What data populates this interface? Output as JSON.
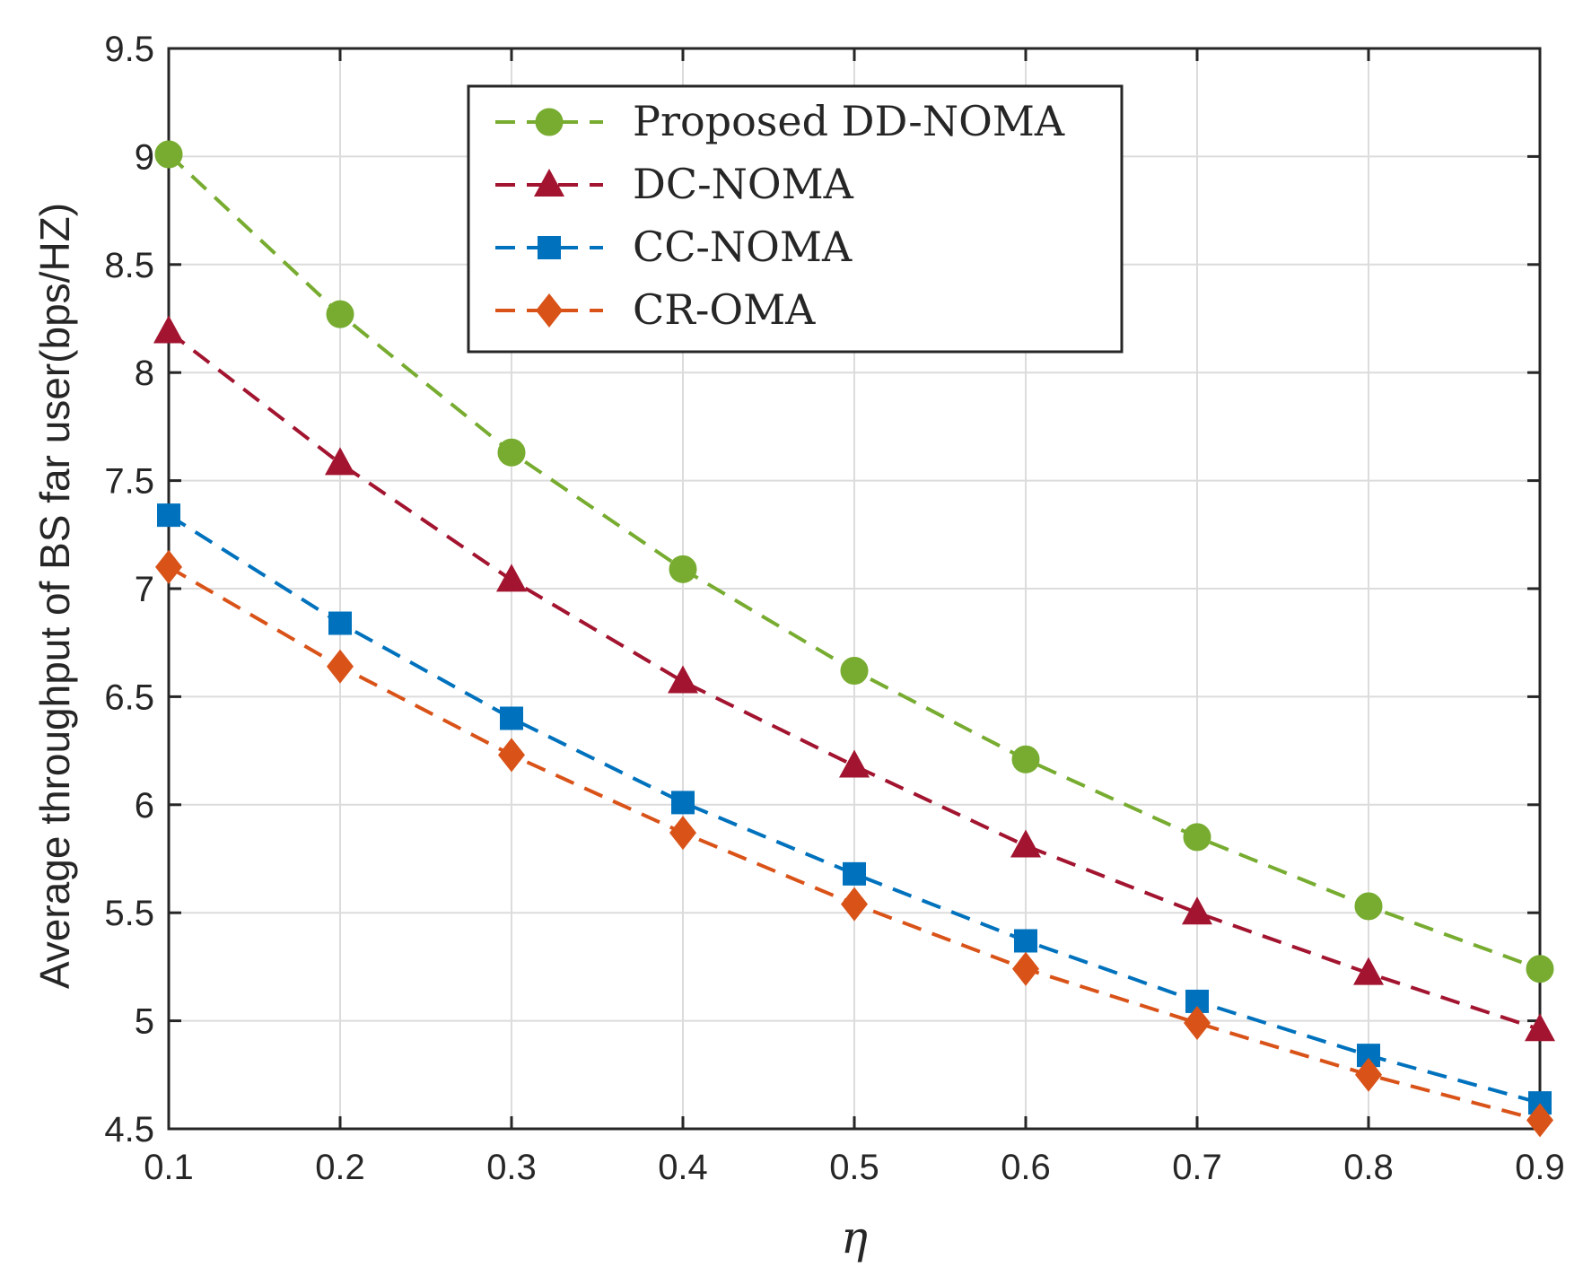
{
  "chart_data": {
    "type": "line",
    "title": "",
    "xlabel": "η",
    "ylabel": "Average throughput of BS far user(bps/HZ)",
    "xlim": [
      0.1,
      0.9
    ],
    "ylim": [
      4.5,
      9.5
    ],
    "grid": true,
    "legend_position": "top-center",
    "x": [
      0.1,
      0.2,
      0.3,
      0.4,
      0.5,
      0.6,
      0.7,
      0.8,
      0.9
    ],
    "x_ticks": [
      "0.1",
      "0.2",
      "0.3",
      "0.4",
      "0.5",
      "0.6",
      "0.7",
      "0.8",
      "0.9"
    ],
    "y_ticks": [
      "4.5",
      "5",
      "5.5",
      "6",
      "6.5",
      "7",
      "7.5",
      "8",
      "8.5",
      "9",
      "9.5"
    ],
    "series": [
      {
        "name": "Proposed DD-NOMA",
        "marker": "circle",
        "color": "#77AC30",
        "values": [
          9.01,
          8.27,
          7.63,
          7.09,
          6.62,
          6.21,
          5.85,
          5.53,
          5.24
        ]
      },
      {
        "name": "DC-NOMA",
        "marker": "triangle",
        "color": "#A2142F",
        "values": [
          8.19,
          7.58,
          7.04,
          6.57,
          6.18,
          5.81,
          5.5,
          5.22,
          4.96
        ]
      },
      {
        "name": "CC-NOMA",
        "marker": "square",
        "color": "#0072BD",
        "values": [
          7.34,
          6.84,
          6.4,
          6.01,
          5.68,
          5.37,
          5.09,
          4.84,
          4.62
        ]
      },
      {
        "name": "CR-OMA",
        "marker": "diamond",
        "color": "#D95319",
        "values": [
          7.1,
          6.64,
          6.23,
          5.87,
          5.54,
          5.24,
          4.99,
          4.75,
          4.54
        ]
      }
    ]
  }
}
